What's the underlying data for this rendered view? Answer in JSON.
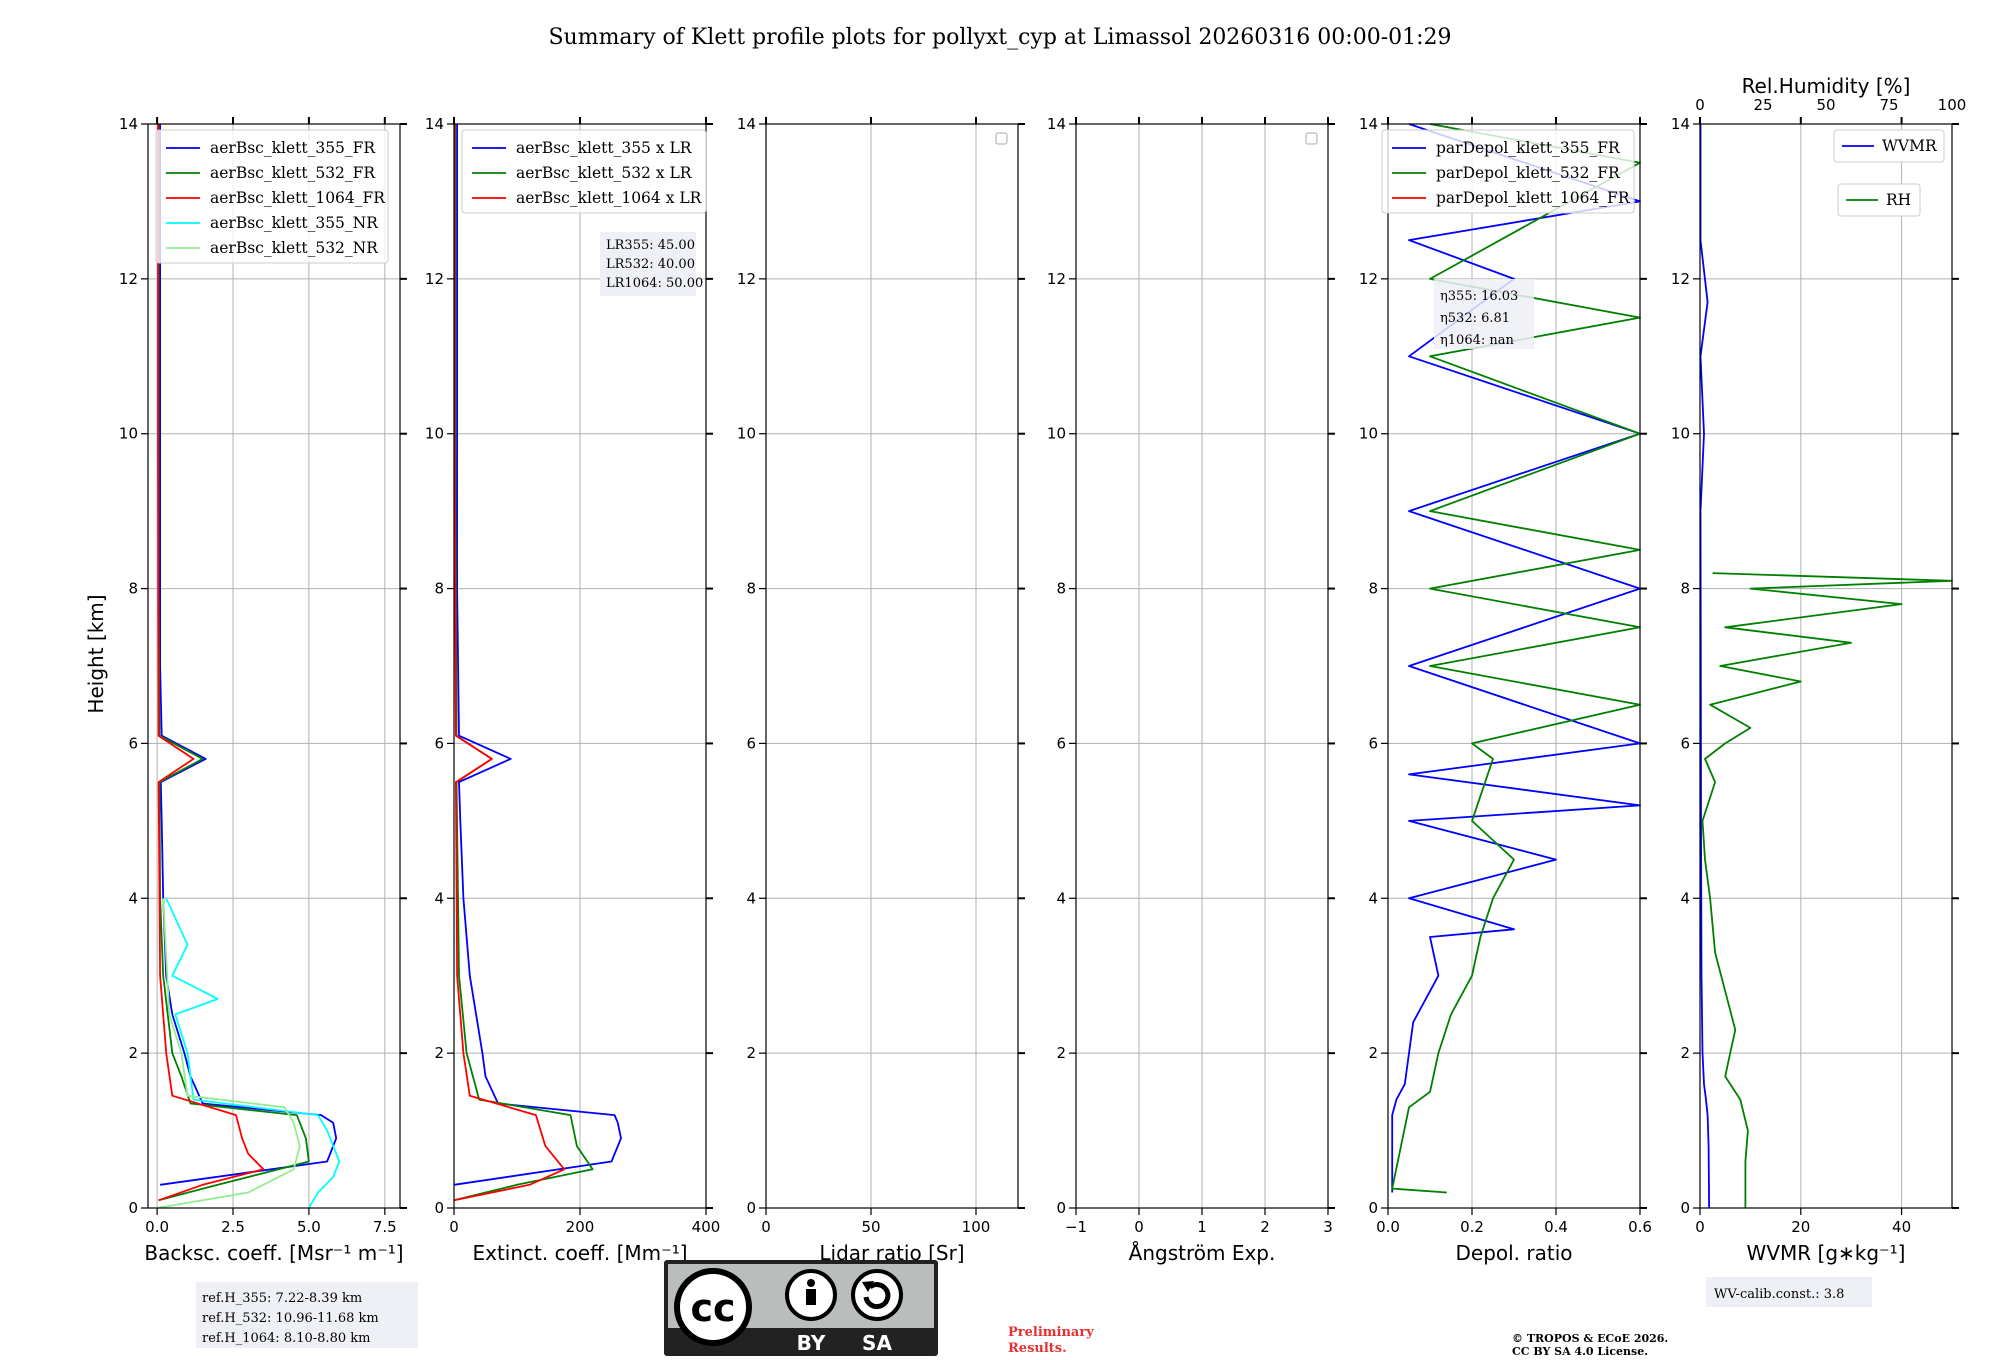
{
  "chart_data": {
    "type": "line",
    "title": "Summary of Klett profile plots for pollyxt_cyp at Limassol 20260316 00:00-01:29",
    "ylabel": "Height [km]",
    "ylim": [
      0,
      14
    ],
    "yticks": [
      "0",
      "2",
      "4",
      "6",
      "8",
      "10",
      "12",
      "14"
    ],
    "panels": [
      {
        "id": "bsc",
        "xlabel": "Backsc. coeff. [Msr⁻¹ m⁻¹]",
        "xlim": [
          -0.3,
          8.0
        ],
        "xticks": [
          {
            "v": 0,
            "label": "0.0"
          },
          {
            "v": 2.5,
            "label": "2.5"
          },
          {
            "v": 5,
            "label": "5.0"
          },
          {
            "v": 7.5,
            "label": "7.5"
          }
        ],
        "legend": [
          "aerBsc_klett_355_FR",
          "aerBsc_klett_532_FR",
          "aerBsc_klett_1064_FR",
          "aerBsc_klett_355_NR",
          "aerBsc_klett_532_NR"
        ],
        "series": [
          {
            "name": "aerBsc_klett_355_FR",
            "color": "#0000ff",
            "x": [
              0.1,
              5.6,
              5.9,
              5.8,
              5.4,
              1.5,
              1.1,
              0.9,
              0.5,
              0.3,
              0.2,
              0.15,
              0.12,
              1.6,
              0.15,
              0.1,
              0.1,
              0.1,
              0.1,
              0.1
            ],
            "y": [
              0.3,
              0.6,
              0.9,
              1.1,
              1.2,
              1.35,
              1.7,
              2.0,
              2.5,
              3.0,
              4.0,
              5.0,
              5.5,
              5.8,
              6.1,
              7.0,
              8.0,
              10.0,
              12.0,
              14.0
            ]
          },
          {
            "name": "aerBsc_klett_532_FR",
            "color": "#008000",
            "x": [
              0.05,
              2.0,
              5.0,
              4.9,
              4.6,
              1.1,
              0.8,
              0.5,
              0.2,
              0.1,
              0.08,
              1.5,
              0.08,
              0.05,
              0.05,
              0.05
            ],
            "y": [
              0.1,
              0.3,
              0.6,
              0.9,
              1.2,
              1.35,
              1.7,
              2.0,
              3.0,
              4.0,
              5.5,
              5.8,
              6.1,
              8.0,
              11.0,
              14.0
            ]
          },
          {
            "name": "aerBsc_klett_1064_FR",
            "color": "#ff0000",
            "x": [
              0.05,
              1.5,
              3.5,
              3.0,
              2.8,
              2.6,
              0.5,
              0.3,
              0.1,
              0.05,
              1.2,
              0.05,
              0.03,
              0.03
            ],
            "y": [
              0.1,
              0.3,
              0.5,
              0.7,
              0.9,
              1.2,
              1.45,
              2.0,
              3.0,
              5.5,
              5.8,
              6.1,
              10.0,
              14.0
            ]
          },
          {
            "name": "aerBsc_klett_355_NR",
            "color": "#00ffff",
            "x": [
              5.0,
              5.3,
              5.8,
              6.0,
              5.6,
              5.3,
              1.2,
              1.0,
              0.6,
              2.0,
              0.5,
              1.0,
              0.3
            ],
            "y": [
              0.0,
              0.2,
              0.4,
              0.6,
              1.0,
              1.2,
              1.4,
              2.0,
              2.5,
              2.7,
              3.0,
              3.4,
              4.0
            ]
          },
          {
            "name": "aerBsc_klett_532_NR",
            "color": "#90ee90",
            "x": [
              0.0,
              3.0,
              4.5,
              4.7,
              4.5,
              4.2,
              1.0,
              0.8,
              0.4,
              0.2
            ],
            "y": [
              0.0,
              0.2,
              0.5,
              0.8,
              1.1,
              1.3,
              1.45,
              2.0,
              2.5,
              4.0
            ]
          }
        ],
        "notes": [
          "ref.H_355: 7.22-8.39 km",
          "ref.H_532: 10.96-11.68 km",
          "ref.H_1064: 8.10-8.80 km"
        ]
      },
      {
        "id": "ext",
        "xlabel": "Extinct. coeff. [Mm⁻¹]",
        "xlim": [
          0,
          400
        ],
        "xticks": [
          {
            "v": 0,
            "label": "0"
          },
          {
            "v": 200,
            "label": "200"
          },
          {
            "v": 400,
            "label": "400"
          }
        ],
        "legend": [
          "aerBsc_klett_355 x LR",
          "aerBsc_klett_532 x LR",
          "aerBsc_klett_1064 x LR"
        ],
        "series": [
          {
            "name": "aerBsc_klett_355 x LR",
            "color": "#0000ff",
            "x": [
              0,
              250,
              265,
              260,
              255,
              70,
              50,
              45,
              25,
              15,
              10,
              8,
              90,
              8,
              5,
              5,
              5
            ],
            "y": [
              0.3,
              0.6,
              0.9,
              1.1,
              1.2,
              1.35,
              1.7,
              2.0,
              3.0,
              4.0,
              5.0,
              5.5,
              5.8,
              6.1,
              8.0,
              12.0,
              14.0
            ]
          },
          {
            "name": "aerBsc_klett_532 x LR",
            "color": "#008000",
            "x": [
              0,
              100,
              220,
              195,
              185,
              40,
              30,
              20,
              8,
              4,
              60,
              4,
              2,
              2
            ],
            "y": [
              0.1,
              0.3,
              0.5,
              0.8,
              1.2,
              1.4,
              1.7,
              2.0,
              3.0,
              5.5,
              5.8,
              6.1,
              10.0,
              14.0
            ]
          },
          {
            "name": "aerBsc_klett_1064 x LR",
            "color": "#ff0000",
            "x": [
              0,
              120,
              175,
              145,
              130,
              25,
              15,
              5,
              3,
              60,
              3,
              1,
              1
            ],
            "y": [
              0.1,
              0.3,
              0.5,
              0.8,
              1.2,
              1.45,
              2.0,
              3.0,
              5.5,
              5.8,
              6.1,
              10.0,
              14.0
            ]
          }
        ],
        "notes": [
          "LR355: 45.00",
          "LR532: 40.00",
          "LR1064: 50.00"
        ]
      },
      {
        "id": "lr",
        "xlabel": "Lidar ratio [Sr]",
        "xlim": [
          0,
          120
        ],
        "xticks": [
          {
            "v": 0,
            "label": "0"
          },
          {
            "v": 50,
            "label": "50"
          },
          {
            "v": 100,
            "label": "100"
          }
        ],
        "legend": [],
        "series": [],
        "notes": []
      },
      {
        "id": "ae",
        "xlabel": "Ångström Exp.",
        "xlim": [
          -1,
          3
        ],
        "xticks": [
          {
            "v": -1,
            "label": "−1"
          },
          {
            "v": 0,
            "label": "0"
          },
          {
            "v": 1,
            "label": "1"
          },
          {
            "v": 2,
            "label": "2"
          },
          {
            "v": 3,
            "label": "3"
          }
        ],
        "legend": [],
        "series": [],
        "notes": []
      },
      {
        "id": "dep",
        "xlabel": "Depol. ratio",
        "xlim": [
          0,
          0.6
        ],
        "xticks": [
          {
            "v": 0,
            "label": "0.0"
          },
          {
            "v": 0.2,
            "label": "0.2"
          },
          {
            "v": 0.4,
            "label": "0.4"
          },
          {
            "v": 0.6,
            "label": "0.6"
          }
        ],
        "legend": [
          "parDepol_klett_355_FR",
          "parDepol_klett_532_FR",
          "parDepol_klett_1064_FR"
        ],
        "series": [
          {
            "name": "parDepol_klett_355_FR",
            "color": "#0000ff",
            "x": [
              0.01,
              0.01,
              0.02,
              0.04,
              0.05,
              0.06,
              0.08,
              0.1,
              0.12,
              0.1,
              0.3,
              0.05,
              0.4,
              0.05,
              0.6,
              0.05,
              0.6,
              0.05,
              0.6,
              0.05,
              0.6,
              0.05,
              0.3,
              0.05,
              0.6,
              0.05
            ],
            "y": [
              0.2,
              1.2,
              1.4,
              1.6,
              2.0,
              2.4,
              2.6,
              2.8,
              3.0,
              3.5,
              3.6,
              4.0,
              4.5,
              5.0,
              5.2,
              5.6,
              6.0,
              7.0,
              8.0,
              9.0,
              10.0,
              11.0,
              12.0,
              12.5,
              13.0,
              14.0
            ]
          },
          {
            "name": "parDepol_klett_532_FR",
            "color": "#008000",
            "x": [
              0.14,
              0.01,
              0.05,
              0.1,
              0.12,
              0.15,
              0.18,
              0.2,
              0.22,
              0.25,
              0.3,
              0.2,
              0.25,
              0.2,
              0.6,
              0.1,
              0.6,
              0.1,
              0.6,
              0.1,
              0.6,
              0.1,
              0.6,
              0.1,
              0.6,
              0.1
            ],
            "y": [
              0.2,
              0.25,
              1.3,
              1.5,
              2.0,
              2.5,
              2.8,
              3.0,
              3.5,
              4.0,
              4.5,
              5.0,
              5.8,
              6.0,
              6.5,
              7.0,
              7.5,
              8.0,
              8.5,
              9.0,
              10.0,
              11.0,
              11.5,
              12.0,
              13.5,
              14.0
            ]
          },
          {
            "name": "parDepol_klett_1064_FR",
            "color": "#ff0000",
            "x": [],
            "y": []
          }
        ],
        "notes": [
          "η355: 16.03",
          "η532: 6.81",
          "η1064: nan"
        ]
      },
      {
        "id": "wv",
        "xlabel": "WVMR [g∗kg⁻¹]",
        "xlim": [
          0,
          50
        ],
        "xticks": [
          {
            "v": 0,
            "label": "0"
          },
          {
            "v": 20,
            "label": "20"
          },
          {
            "v": 40,
            "label": "40"
          }
        ],
        "top_xlabel": "Rel.Humidity [%]",
        "top_xlim": [
          0,
          100
        ],
        "top_xticks": [
          {
            "v": 0,
            "label": "0"
          },
          {
            "v": 25,
            "label": "25"
          },
          {
            "v": 50,
            "label": "50"
          },
          {
            "v": 75,
            "label": "75"
          },
          {
            "v": 100,
            "label": "100"
          }
        ],
        "legend": [
          "WVMR",
          "RH"
        ],
        "series": [
          {
            "name": "WVMR",
            "color": "#0000ff",
            "axis": "bottom",
            "x": [
              1.8,
              1.7,
              1.5,
              1.2,
              0.8,
              0.5,
              0.3,
              0.2,
              0.15,
              0.1,
              0.8,
              0.1,
              1.5,
              0.1,
              0.1
            ],
            "y": [
              0.0,
              0.8,
              1.2,
              1.4,
              1.6,
              2.0,
              3.0,
              5.0,
              7.0,
              9.0,
              10.0,
              11.0,
              11.7,
              12.5,
              14.0
            ]
          },
          {
            "name": "RH",
            "color": "#008000",
            "axis": "top",
            "x": [
              18,
              18,
              19,
              16,
              10,
              12,
              14,
              10,
              6,
              4,
              2,
              1,
              6,
              2,
              10,
              20,
              4,
              40,
              8,
              60,
              10,
              80,
              20,
              100,
              5
            ],
            "y": [
              0.0,
              0.6,
              1.0,
              1.4,
              1.7,
              2.0,
              2.3,
              2.8,
              3.3,
              4.0,
              4.5,
              5.0,
              5.5,
              5.8,
              6.0,
              6.2,
              6.5,
              6.8,
              7.0,
              7.3,
              7.5,
              7.8,
              8.0,
              8.1,
              8.2
            ]
          }
        ],
        "notes": [
          "WV-calib.const.: 3.8"
        ]
      }
    ]
  },
  "footer": {
    "license_by": "BY",
    "license_sa": "SA",
    "license_cc": "cc",
    "preliminary_1": "Preliminary",
    "preliminary_2": "Results.",
    "copyright_1": "© TROPOS & ECoE 2026.",
    "copyright_2": "CC BY SA 4.0 License."
  }
}
